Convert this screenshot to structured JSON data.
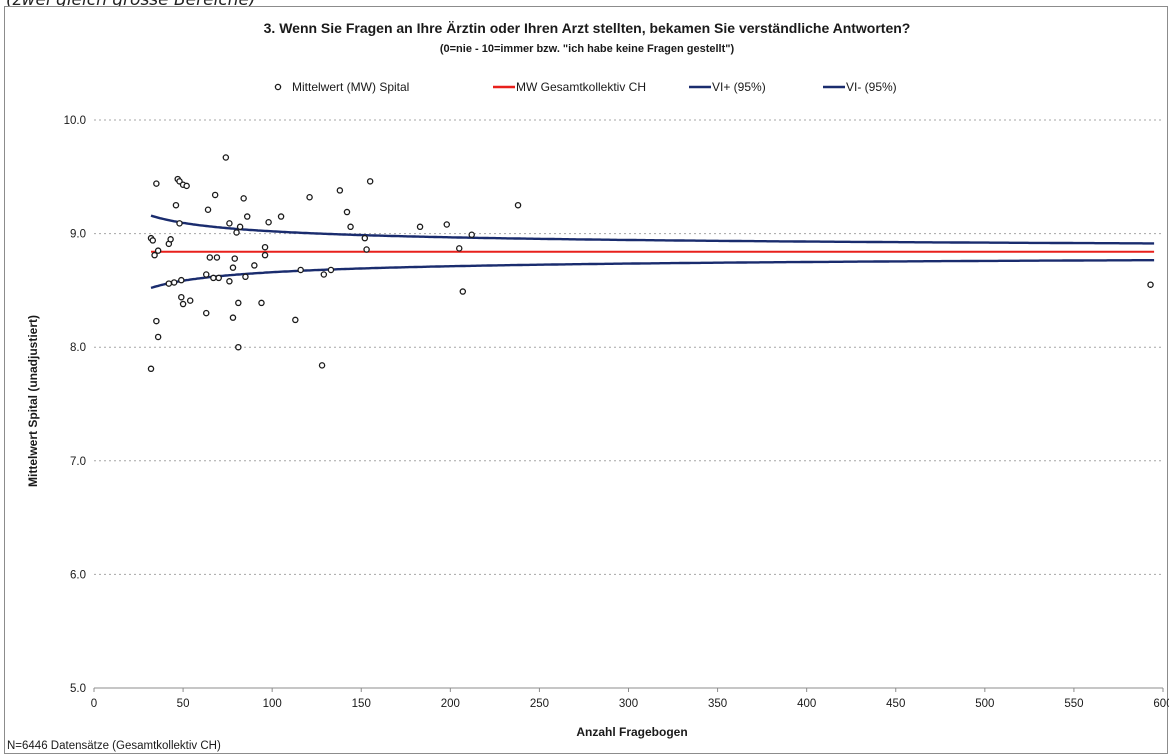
{
  "clip_text": "(zwei gleich grosse Bereiche)",
  "chart_data": {
    "type": "scatter",
    "title": "3. Wenn Sie Fragen an Ihre Ärztin oder Ihren Arzt stellten, bekamen Sie verständliche Antworten?",
    "subtitle": "(0=nie - 10=immer bzw. \"ich habe keine Fragen gestellt\")",
    "xlabel": "Anzahl Fragebogen",
    "ylabel": "Mittelwert Spital (unadjustiert)",
    "footnote": "N=6446 Datensätze (Gesamtkollektiv CH)",
    "xlim": [
      0,
      600
    ],
    "ylim": [
      5.0,
      10.0
    ],
    "xticks": [
      0,
      50,
      100,
      150,
      200,
      250,
      300,
      350,
      400,
      450,
      500,
      550,
      600
    ],
    "yticks": [
      "5.0",
      "6.0",
      "7.0",
      "8.0",
      "9.0",
      "10.0"
    ],
    "grid": "horizontal-dotted",
    "legend_position": "top",
    "series": [
      {
        "name": "Mittelwert (MW) Spital",
        "kind": "markers",
        "color": "#1a1a1a",
        "points": [
          [
            32,
            7.81
          ],
          [
            32,
            8.96
          ],
          [
            33,
            8.94
          ],
          [
            34,
            8.81
          ],
          [
            35,
            9.44
          ],
          [
            35,
            8.23
          ],
          [
            36,
            8.09
          ],
          [
            36,
            8.85
          ],
          [
            42,
            8.91
          ],
          [
            42,
            8.56
          ],
          [
            43,
            8.95
          ],
          [
            45,
            8.57
          ],
          [
            46,
            9.25
          ],
          [
            47,
            9.48
          ],
          [
            48,
            9.09
          ],
          [
            48,
            9.46
          ],
          [
            49,
            8.44
          ],
          [
            49,
            8.59
          ],
          [
            50,
            8.38
          ],
          [
            50,
            9.43
          ],
          [
            52,
            9.42
          ],
          [
            54,
            8.41
          ],
          [
            63,
            8.3
          ],
          [
            63,
            8.64
          ],
          [
            64,
            9.21
          ],
          [
            65,
            8.79
          ],
          [
            67,
            8.61
          ],
          [
            68,
            9.34
          ],
          [
            69,
            8.79
          ],
          [
            70,
            8.61
          ],
          [
            74,
            9.67
          ],
          [
            76,
            9.09
          ],
          [
            76,
            8.58
          ],
          [
            78,
            8.26
          ],
          [
            78,
            8.7
          ],
          [
            79,
            8.78
          ],
          [
            80,
            9.01
          ],
          [
            81,
            8.0
          ],
          [
            81,
            8.39
          ],
          [
            82,
            9.06
          ],
          [
            84,
            9.31
          ],
          [
            85,
            8.62
          ],
          [
            86,
            9.15
          ],
          [
            90,
            8.72
          ],
          [
            94,
            8.39
          ],
          [
            96,
            8.88
          ],
          [
            96,
            8.81
          ],
          [
            98,
            9.1
          ],
          [
            105,
            9.15
          ],
          [
            113,
            8.24
          ],
          [
            116,
            8.68
          ],
          [
            121,
            9.32
          ],
          [
            128,
            7.84
          ],
          [
            129,
            8.64
          ],
          [
            133,
            8.68
          ],
          [
            138,
            9.38
          ],
          [
            142,
            9.19
          ],
          [
            144,
            9.06
          ],
          [
            152,
            8.96
          ],
          [
            153,
            8.86
          ],
          [
            155,
            9.46
          ],
          [
            183,
            9.06
          ],
          [
            198,
            9.08
          ],
          [
            205,
            8.87
          ],
          [
            207,
            8.49
          ],
          [
            212,
            8.99
          ],
          [
            238,
            9.25
          ],
          [
            593,
            8.55
          ]
        ]
      },
      {
        "name": "MW Gesamtkollektiv CH",
        "kind": "line",
        "color": "#e8201c",
        "value": 8.84
      },
      {
        "name": "VI+ (95%)",
        "kind": "curve",
        "color": "#1a2c6e"
      },
      {
        "name": "VI- (95%)",
        "kind": "curve",
        "color": "#1a2c6e"
      }
    ],
    "ci_model": {
      "mean": 8.84,
      "k": 1.8
    }
  }
}
